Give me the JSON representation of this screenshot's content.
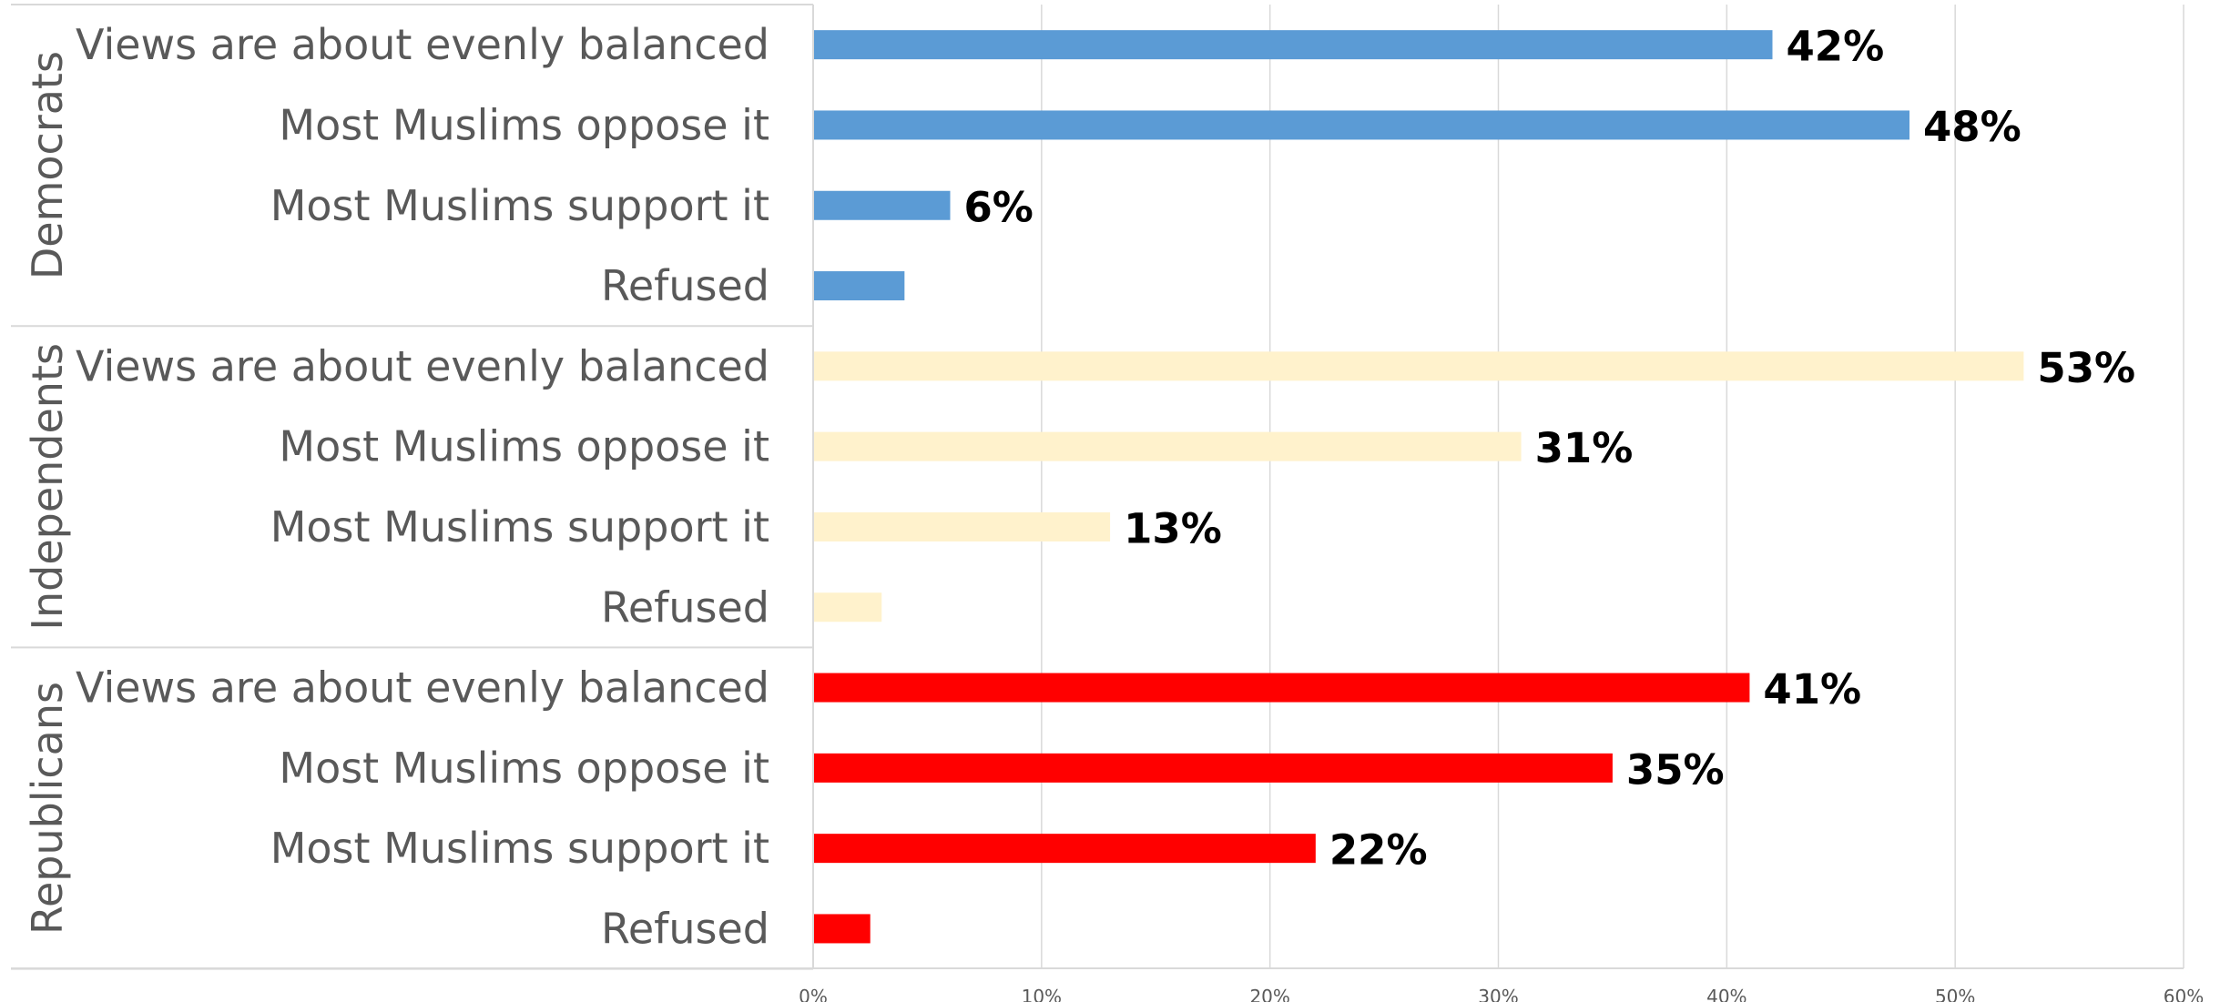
{
  "chart_data": {
    "type": "bar",
    "orientation": "horizontal",
    "title": "",
    "xlabel": "",
    "ylabel": "",
    "xlim": [
      0,
      60
    ],
    "ticks": [
      "0%",
      "10%",
      "20%",
      "30%",
      "40%",
      "50%",
      "60%"
    ],
    "grid": true,
    "legend": "none",
    "categories": [
      "Views are about evenly balanced",
      "Most Muslims oppose it",
      "Most Muslims support it",
      "Refused"
    ],
    "series": [
      {
        "name": "Democrats",
        "color": "#5b9bd5",
        "values": [
          42,
          48,
          6,
          4
        ],
        "labels": [
          "42%",
          "48%",
          "6%",
          ""
        ]
      },
      {
        "name": "Independents",
        "color": "#fff2cc",
        "values": [
          53,
          31,
          13,
          3
        ],
        "labels": [
          "53%",
          "31%",
          "13%",
          ""
        ]
      },
      {
        "name": "Republicans",
        "color": "#ff0000",
        "values": [
          41,
          35,
          22,
          2.5
        ],
        "labels": [
          "41%",
          "35%",
          "22%",
          ""
        ]
      }
    ]
  }
}
